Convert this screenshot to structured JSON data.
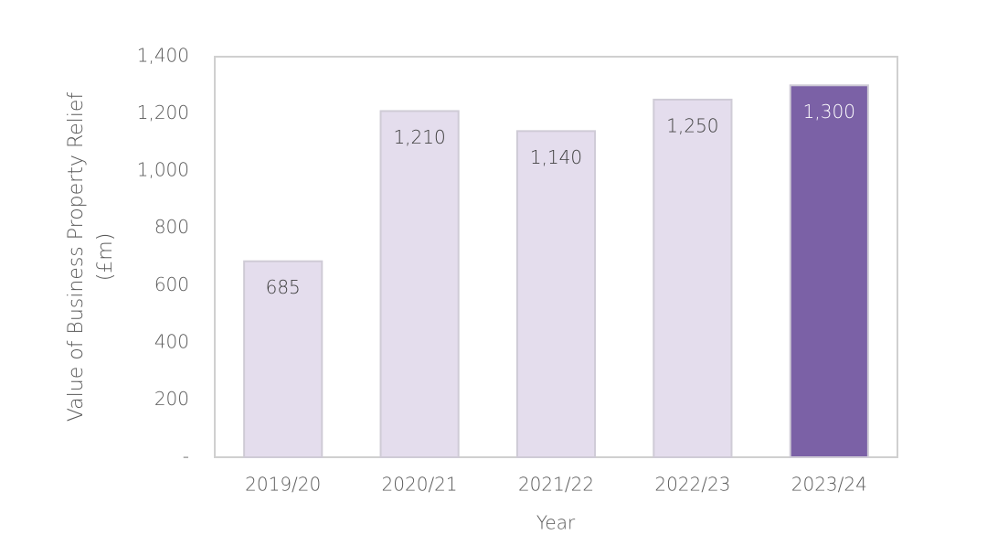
{
  "chart_data": {
    "type": "bar",
    "categories": [
      "2019/20",
      "2020/21",
      "2021/22",
      "2022/23",
      "2023/24"
    ],
    "values": [
      685,
      1210,
      1140,
      1250,
      1300
    ],
    "value_labels": [
      "685",
      "1,210",
      "1,140",
      "1,250",
      "1,300"
    ],
    "colors": [
      "#e4dded",
      "#e4dded",
      "#e4dded",
      "#e4dded",
      "#7b61a6"
    ],
    "xlabel": "Year",
    "ylabel": [
      "Value of Business Property Relief",
      "(£m)"
    ],
    "ylim": [
      0,
      1400
    ],
    "yticks": [
      {
        "value": 0,
        "label": "-"
      },
      200,
      400,
      600,
      800,
      {
        "value": 1000,
        "label": "1,000"
      },
      {
        "value": 1200,
        "label": "1,200"
      },
      {
        "value": 1400,
        "label": "1,400"
      }
    ],
    "grid": false
  }
}
